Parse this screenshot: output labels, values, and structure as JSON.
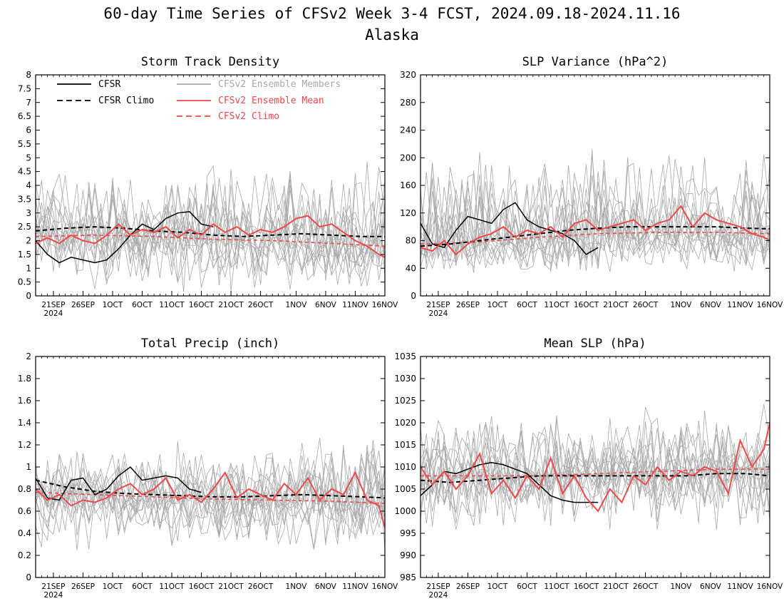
{
  "title": {
    "line1": "60-day Time Series of CFSv2 Week 3-4 FCST, 2024.09.18-2024.11.16",
    "line2": "Alaska"
  },
  "colors": {
    "cfsr": "#000000",
    "member": "#a8a8a8",
    "ens_mean": "#f04848",
    "cfsv2_climo": "#f04848"
  },
  "legend": [
    {
      "label": "CFSR",
      "color": "#000000",
      "style": "solid"
    },
    {
      "label": "CFSR Climo",
      "color": "#000000",
      "style": "dashed"
    },
    {
      "label": "CFSv2 Ensemble Members",
      "color": "#a8a8a8",
      "style": "solid"
    },
    {
      "label": "CFSv2 Ensemble Mean",
      "color": "#f04848",
      "style": "solid"
    },
    {
      "label": "CFSv2 Climo",
      "color": "#f04848",
      "style": "dashed"
    }
  ],
  "x_axis": {
    "start_date": "2024-09-18",
    "days": 60,
    "tick_labels": [
      "21SEP",
      "26SEP",
      "1OCT",
      "6OCT",
      "11OCT",
      "16OCT",
      "21OCT",
      "26OCT",
      "1NOV",
      "6NOV",
      "11NOV",
      "16NOV"
    ],
    "tick_days": [
      3,
      8,
      13,
      18,
      23,
      28,
      33,
      38,
      44,
      49,
      54,
      59
    ],
    "year_label": "2024"
  },
  "chart_data": [
    {
      "type": "line",
      "title": "Storm Track Density",
      "ylim": [
        0,
        8
      ],
      "yticks": [
        "0",
        "0.5",
        "1",
        "1.5",
        "2",
        "2.5",
        "3",
        "3.5",
        "4",
        "4.5",
        "5",
        "5.5",
        "6",
        "6.5",
        "7",
        "7.5",
        "8"
      ],
      "member_spread": [
        0.3,
        4.5
      ],
      "series": [
        {
          "name": "CFSR",
          "x_days": [
            0,
            2,
            4,
            6,
            8,
            10,
            12,
            14,
            16,
            18,
            20,
            22,
            24,
            26,
            28,
            30
          ],
          "values": [
            2.0,
            1.5,
            1.2,
            1.4,
            1.3,
            1.2,
            1.3,
            1.7,
            2.2,
            2.6,
            2.4,
            2.8,
            3.0,
            3.05,
            2.6,
            2.5
          ]
        },
        {
          "name": "CFSR Climo",
          "x_days": [
            0,
            5,
            10,
            15,
            20,
            25,
            30,
            35,
            40,
            45,
            50,
            55,
            59
          ],
          "values": [
            2.35,
            2.45,
            2.5,
            2.45,
            2.35,
            2.3,
            2.2,
            2.15,
            2.2,
            2.25,
            2.2,
            2.15,
            2.15
          ]
        },
        {
          "name": "CFSv2 Ensemble Mean",
          "x_days": [
            0,
            2,
            4,
            6,
            8,
            10,
            12,
            14,
            16,
            18,
            20,
            22,
            24,
            26,
            28,
            30,
            32,
            34,
            36,
            38,
            40,
            42,
            44,
            46,
            48,
            50,
            52,
            54,
            56,
            58,
            59
          ],
          "values": [
            1.9,
            2.1,
            1.9,
            2.2,
            2.0,
            1.9,
            2.2,
            2.6,
            2.2,
            2.4,
            2.3,
            2.5,
            2.1,
            2.4,
            2.2,
            2.6,
            2.3,
            2.5,
            2.2,
            2.4,
            2.3,
            2.5,
            2.8,
            2.9,
            2.5,
            2.6,
            2.3,
            2.0,
            1.8,
            1.5,
            1.4
          ]
        },
        {
          "name": "CFSv2 Climo",
          "x_days": [
            0,
            10,
            20,
            30,
            40,
            50,
            59
          ],
          "values": [
            2.15,
            2.2,
            2.15,
            2.05,
            2.0,
            1.9,
            1.8
          ]
        }
      ]
    },
    {
      "type": "line",
      "title": "SLP Variance (hPa^2)",
      "ylim": [
        0,
        320
      ],
      "yticks": [
        "0",
        "40",
        "80",
        "120",
        "160",
        "200",
        "240",
        "280",
        "320"
      ],
      "member_spread": [
        35,
        200
      ],
      "series": [
        {
          "name": "CFSR",
          "x_days": [
            0,
            2,
            4,
            6,
            8,
            10,
            12,
            14,
            16,
            18,
            20,
            22,
            24,
            26,
            28,
            30
          ],
          "values": [
            105,
            75,
            70,
            95,
            115,
            110,
            105,
            125,
            135,
            110,
            100,
            95,
            90,
            80,
            60,
            70
          ]
        },
        {
          "name": "CFSR Climo",
          "x_days": [
            0,
            5,
            10,
            15,
            20,
            25,
            30,
            35,
            40,
            45,
            50,
            55,
            59
          ],
          "values": [
            72,
            75,
            80,
            85,
            90,
            95,
            98,
            100,
            100,
            100,
            100,
            98,
            97
          ]
        },
        {
          "name": "CFSv2 Ensemble Mean",
          "x_days": [
            0,
            2,
            4,
            6,
            8,
            10,
            12,
            14,
            16,
            18,
            20,
            22,
            24,
            26,
            28,
            30,
            32,
            34,
            36,
            38,
            40,
            42,
            44,
            46,
            48,
            50,
            52,
            54,
            56,
            58,
            59
          ],
          "values": [
            70,
            65,
            80,
            60,
            75,
            85,
            90,
            100,
            85,
            95,
            90,
            100,
            85,
            105,
            110,
            95,
            100,
            105,
            110,
            95,
            105,
            110,
            130,
            100,
            120,
            110,
            105,
            100,
            90,
            85,
            80
          ]
        },
        {
          "name": "CFSv2 Climo",
          "x_days": [
            0,
            10,
            20,
            30,
            40,
            50,
            59
          ],
          "values": [
            75,
            78,
            85,
            90,
            92,
            92,
            90
          ]
        }
      ]
    },
    {
      "type": "line",
      "title": "Total Precip (inch)",
      "ylim": [
        0,
        2
      ],
      "yticks": [
        "0",
        "0.2",
        "0.4",
        "0.6",
        "0.8",
        "1",
        "1.2",
        "1.4",
        "1.6",
        "1.8",
        "2"
      ],
      "member_spread": [
        0.3,
        1.2
      ],
      "series": [
        {
          "name": "CFSR",
          "x_days": [
            0,
            2,
            4,
            6,
            8,
            10,
            12,
            14,
            16,
            18,
            20,
            22,
            24,
            26,
            28
          ],
          "values": [
            0.9,
            0.72,
            0.7,
            0.88,
            0.9,
            0.75,
            0.8,
            0.92,
            1.0,
            0.88,
            0.9,
            0.92,
            0.9,
            0.8,
            0.77
          ]
        },
        {
          "name": "CFSR Climo",
          "x_days": [
            0,
            5,
            10,
            15,
            20,
            25,
            30,
            35,
            40,
            45,
            50,
            55,
            59
          ],
          "values": [
            0.88,
            0.82,
            0.78,
            0.76,
            0.75,
            0.74,
            0.73,
            0.73,
            0.74,
            0.75,
            0.74,
            0.73,
            0.72
          ]
        },
        {
          "name": "CFSv2 Ensemble Mean",
          "x_days": [
            0,
            2,
            4,
            6,
            8,
            10,
            12,
            14,
            16,
            18,
            20,
            22,
            24,
            26,
            28,
            30,
            32,
            34,
            36,
            38,
            40,
            42,
            44,
            46,
            48,
            50,
            52,
            54,
            56,
            58,
            59
          ],
          "values": [
            0.8,
            0.7,
            0.75,
            0.65,
            0.7,
            0.68,
            0.72,
            0.8,
            0.85,
            0.75,
            0.8,
            0.9,
            0.7,
            0.75,
            0.68,
            0.8,
            0.95,
            0.72,
            0.8,
            0.75,
            0.7,
            0.85,
            0.75,
            0.9,
            0.7,
            0.8,
            0.75,
            0.95,
            0.7,
            0.65,
            0.45
          ]
        },
        {
          "name": "CFSv2 Climo",
          "x_days": [
            0,
            10,
            20,
            30,
            40,
            50,
            59
          ],
          "values": [
            0.77,
            0.75,
            0.73,
            0.71,
            0.7,
            0.69,
            0.67
          ]
        }
      ]
    },
    {
      "type": "line",
      "title": "Mean SLP (hPa)",
      "ylim": [
        985,
        1035
      ],
      "yticks": [
        "985",
        "990",
        "995",
        "1000",
        "1005",
        "1010",
        "1015",
        "1020",
        "1025",
        "1030",
        "1035"
      ],
      "member_spread": [
        997,
        1022
      ],
      "series": [
        {
          "name": "CFSR",
          "x_days": [
            0,
            2,
            4,
            6,
            8,
            10,
            12,
            14,
            16,
            18,
            20,
            22,
            24,
            26,
            28,
            30
          ],
          "values": [
            1003.5,
            1006,
            1009,
            1008.5,
            1009.5,
            1010.5,
            1011,
            1010.5,
            1009.5,
            1008.5,
            1006,
            1003.5,
            1002.5,
            1002,
            1002,
            1002
          ]
        },
        {
          "name": "CFSR Climo",
          "x_days": [
            0,
            5,
            10,
            15,
            20,
            25,
            30,
            35,
            40,
            45,
            50,
            55,
            59
          ],
          "values": [
            1007,
            1006.5,
            1007,
            1007.5,
            1008,
            1008,
            1008,
            1008,
            1008,
            1008,
            1008.5,
            1008.5,
            1008
          ]
        },
        {
          "name": "CFSv2 Ensemble Mean",
          "x_days": [
            0,
            2,
            4,
            6,
            8,
            10,
            12,
            14,
            16,
            18,
            20,
            22,
            24,
            26,
            28,
            30,
            32,
            34,
            36,
            38,
            40,
            42,
            44,
            46,
            48,
            50,
            52,
            54,
            56,
            58,
            59
          ],
          "values": [
            1010,
            1006,
            1009,
            1005,
            1008,
            1013,
            1004,
            1007,
            1003,
            1008,
            1005,
            1012,
            1004,
            1008,
            1003,
            1000,
            1005,
            1002,
            1008,
            1006,
            1010,
            1007,
            1009,
            1008,
            1010,
            1009,
            1004,
            1016,
            1010,
            1014,
            1020
          ]
        },
        {
          "name": "CFSv2 Climo",
          "x_days": [
            0,
            10,
            20,
            30,
            40,
            50,
            59
          ],
          "values": [
            1008,
            1008,
            1008,
            1008.5,
            1009,
            1009.5,
            1009.5
          ]
        }
      ]
    }
  ]
}
